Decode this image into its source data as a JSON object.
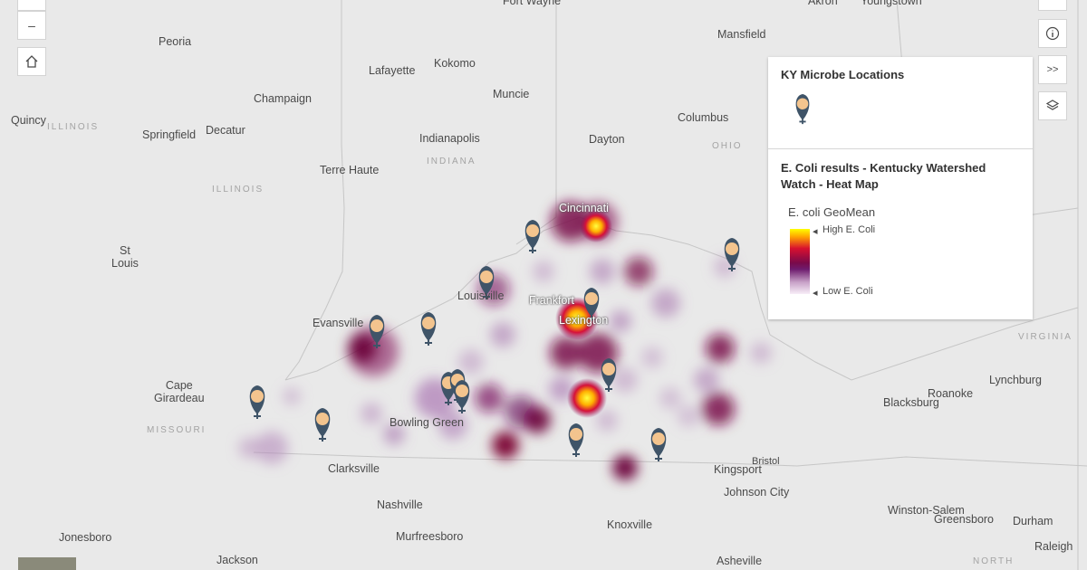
{
  "controls": {
    "zoom_in": "+",
    "zoom_out": "–",
    "expand": ">>"
  },
  "map": {
    "cities": [
      {
        "id": "fort-wayne",
        "name": "Fort Wayne"
      },
      {
        "id": "akron",
        "name": "Akron"
      },
      {
        "id": "youngstown",
        "name": "Youngstown"
      },
      {
        "id": "mansfield",
        "name": "Mansfield"
      },
      {
        "id": "peoria",
        "name": "Peoria"
      },
      {
        "id": "lafayette",
        "name": "Lafayette"
      },
      {
        "id": "kokomo",
        "name": "Kokomo"
      },
      {
        "id": "muncie",
        "name": "Muncie"
      },
      {
        "id": "champaign",
        "name": "Champaign"
      },
      {
        "id": "quincy",
        "name": "Quincy"
      },
      {
        "id": "springfield",
        "name": "Springfield"
      },
      {
        "id": "decatur",
        "name": "Decatur"
      },
      {
        "id": "indianapolis",
        "name": "Indianapolis"
      },
      {
        "id": "columbus",
        "name": "Columbus"
      },
      {
        "id": "dayton",
        "name": "Dayton"
      },
      {
        "id": "terre-haute",
        "name": "Terre Haute"
      },
      {
        "id": "cincinnati",
        "name": "Cincinnati"
      },
      {
        "id": "st-louis",
        "name": "St\nLouis"
      },
      {
        "id": "louisville",
        "name": "Louisville"
      },
      {
        "id": "frankfort",
        "name": "Frankfort"
      },
      {
        "id": "lexington",
        "name": "Lexington"
      },
      {
        "id": "evansville",
        "name": "Evansville"
      },
      {
        "id": "cape-girardeau",
        "name": "Cape\nGirardeau"
      },
      {
        "id": "bowling-green",
        "name": "Bowling Green"
      },
      {
        "id": "clarksville",
        "name": "Clarksville"
      },
      {
        "id": "nashville",
        "name": "Nashville"
      },
      {
        "id": "murfreesboro",
        "name": "Murfreesboro"
      },
      {
        "id": "jonesboro",
        "name": "Jonesboro"
      },
      {
        "id": "jackson",
        "name": "Jackson"
      },
      {
        "id": "knoxville",
        "name": "Knoxville"
      },
      {
        "id": "asheville",
        "name": "Asheville"
      },
      {
        "id": "kingsport",
        "name": "Kingsport"
      },
      {
        "id": "bristol",
        "name": "Bristol"
      },
      {
        "id": "johnson-city",
        "name": "Johnson City"
      },
      {
        "id": "blacksburg",
        "name": "Blacksburg"
      },
      {
        "id": "roanoke",
        "name": "Roanoke"
      },
      {
        "id": "lynchburg",
        "name": "Lynchburg"
      },
      {
        "id": "winston-salem",
        "name": "Winston-Salem"
      },
      {
        "id": "greensboro",
        "name": "Greensboro"
      },
      {
        "id": "durham",
        "name": "Durham"
      },
      {
        "id": "raleigh",
        "name": "Raleigh"
      }
    ],
    "regions": [
      {
        "id": "illinois-1",
        "name": "ILLINOIS"
      },
      {
        "id": "illinois-2",
        "name": "ILLINOIS"
      },
      {
        "id": "indiana",
        "name": "INDIANA"
      },
      {
        "id": "ohio",
        "name": "OHIO"
      },
      {
        "id": "missouri",
        "name": "MISSOURI"
      },
      {
        "id": "virginia",
        "name": "VIRGINIA"
      },
      {
        "id": "north",
        "name": "NORTH"
      }
    ]
  },
  "legend": {
    "layer1_title": "KY Microbe Locations",
    "layer2_title_line1": "E. Coli results - Kentucky Watershed",
    "layer2_title_line2": "Watch - Heat Map",
    "field_name": "E. coli GeoMean",
    "high_label": "High E. Coli",
    "low_label": "Low E. Coli"
  }
}
